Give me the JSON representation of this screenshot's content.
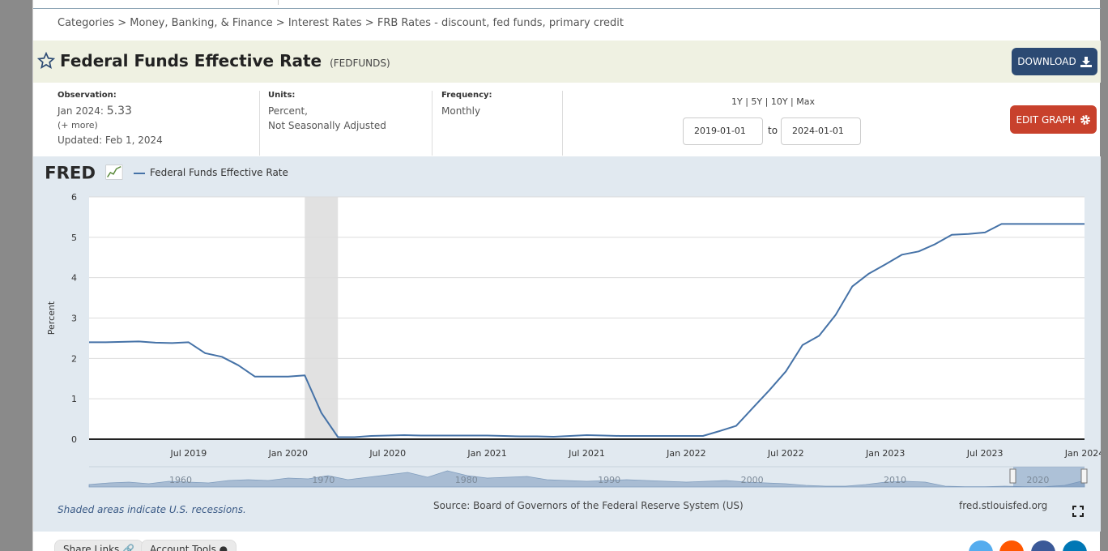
{
  "breadcrumb": {
    "items": [
      "Categories",
      "Money, Banking, & Finance",
      "Interest Rates",
      "FRB Rates - discount, fed funds, primary credit"
    ],
    "separator": ">"
  },
  "header": {
    "title": "Federal Funds Effective Rate",
    "series_id": "(FEDFUNDS)",
    "download_label": "DOWNLOAD"
  },
  "meta": {
    "observation_label": "Observation:",
    "observation_date": "Jan 2024:",
    "observation_value": "5.33",
    "more_label": "(+ more)",
    "updated": "Updated: Feb 1, 2024",
    "units_label": "Units:",
    "units_line1": "Percent,",
    "units_line2": "Not Seasonally Adjusted",
    "frequency_label": "Frequency:",
    "frequency_value": "Monthly"
  },
  "controls": {
    "ranges": "1Y | 5Y | 10Y | Max",
    "start_date": "2019-01-01",
    "to_label": "to",
    "end_date": "2024-01-01",
    "edit_label": "EDIT GRAPH"
  },
  "graph": {
    "logo": "FRED",
    "footer_recessions": "Shaded areas indicate U.S. recessions.",
    "footer_source": "Source: Board of Governors of the Federal Reserve System (US)",
    "footer_site": "fred.stlouisfed.org"
  },
  "bottom": {
    "share_label": "Share Links",
    "account_label": "Account Tools"
  },
  "colors": {
    "series": "#4572a7",
    "recession": "#e1e1e1",
    "download": "#2c4a73",
    "edit": "#c8412c",
    "title_bar": "#eff1e2",
    "graph_bg": "#e1e9f0"
  },
  "chart_data": {
    "type": "line",
    "title": "",
    "xlabel": "",
    "ylabel": "Percent",
    "ylim": [
      0,
      6
    ],
    "y_ticks": [
      0,
      1,
      2,
      3,
      4,
      5,
      6
    ],
    "x_range": [
      "2019-01",
      "2024-01"
    ],
    "x_ticks": [
      {
        "date": "2019-07",
        "label": "Jul 2019"
      },
      {
        "date": "2020-01",
        "label": "Jan 2020"
      },
      {
        "date": "2020-07",
        "label": "Jul 2020"
      },
      {
        "date": "2021-01",
        "label": "Jan 2021"
      },
      {
        "date": "2021-07",
        "label": "Jul 2021"
      },
      {
        "date": "2022-01",
        "label": "Jan 2022"
      },
      {
        "date": "2022-07",
        "label": "Jul 2022"
      },
      {
        "date": "2023-01",
        "label": "Jan 2023"
      },
      {
        "date": "2023-07",
        "label": "Jul 2023"
      },
      {
        "date": "2024-01",
        "label": "Jan 2024"
      }
    ],
    "grid": true,
    "legend": "top-left",
    "recessions": [
      {
        "start": "2020-02",
        "end": "2020-04"
      }
    ],
    "series": [
      {
        "name": "Federal Funds Effective Rate",
        "x": [
          "2019-01",
          "2019-02",
          "2019-03",
          "2019-04",
          "2019-05",
          "2019-06",
          "2019-07",
          "2019-08",
          "2019-09",
          "2019-10",
          "2019-11",
          "2019-12",
          "2020-01",
          "2020-02",
          "2020-03",
          "2020-04",
          "2020-05",
          "2020-06",
          "2020-07",
          "2020-08",
          "2020-09",
          "2020-10",
          "2020-11",
          "2020-12",
          "2021-01",
          "2021-02",
          "2021-03",
          "2021-04",
          "2021-05",
          "2021-06",
          "2021-07",
          "2021-08",
          "2021-09",
          "2021-10",
          "2021-11",
          "2021-12",
          "2022-01",
          "2022-02",
          "2022-03",
          "2022-04",
          "2022-05",
          "2022-06",
          "2022-07",
          "2022-08",
          "2022-09",
          "2022-10",
          "2022-11",
          "2022-12",
          "2023-01",
          "2023-02",
          "2023-03",
          "2023-04",
          "2023-05",
          "2023-06",
          "2023-07",
          "2023-08",
          "2023-09",
          "2023-10",
          "2023-11",
          "2023-12",
          "2024-01"
        ],
        "values": [
          2.4,
          2.4,
          2.41,
          2.42,
          2.39,
          2.38,
          2.4,
          2.13,
          2.04,
          1.83,
          1.55,
          1.55,
          1.55,
          1.58,
          0.65,
          0.05,
          0.05,
          0.08,
          0.09,
          0.1,
          0.09,
          0.09,
          0.09,
          0.09,
          0.09,
          0.08,
          0.07,
          0.07,
          0.06,
          0.08,
          0.1,
          0.09,
          0.08,
          0.08,
          0.08,
          0.08,
          0.08,
          0.08,
          0.2,
          0.33,
          0.77,
          1.21,
          1.68,
          2.33,
          2.56,
          3.08,
          3.78,
          4.1,
          4.33,
          4.57,
          4.65,
          4.83,
          5.06,
          5.08,
          5.12,
          5.33,
          5.33,
          5.33,
          5.33,
          5.33,
          5.33
        ]
      }
    ],
    "navigator": {
      "labels": [
        "1960",
        "1970",
        "1980",
        "1990",
        "2000",
        "2010",
        "2020"
      ]
    }
  }
}
